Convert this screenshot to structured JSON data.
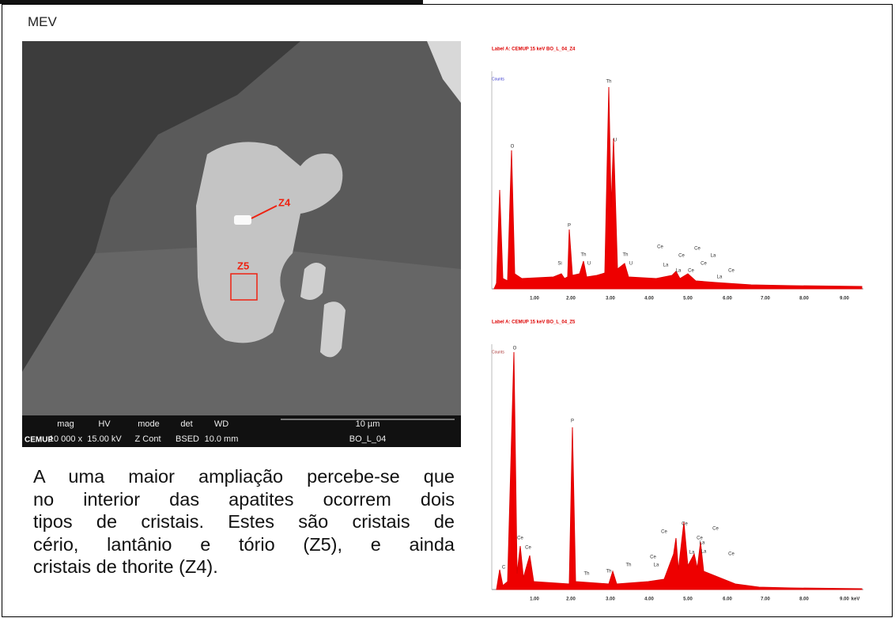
{
  "header": {
    "title": "MEV"
  },
  "sem_image": {
    "labels": [
      "Z4",
      "Z5"
    ],
    "info_bar": {
      "logo": "CEMUP",
      "headers": [
        "mag",
        "HV",
        "mode",
        "det",
        "WD",
        "10 µm"
      ],
      "values": [
        "10 000 x",
        "15.00 kV",
        "Z Cont",
        "BSED",
        "10.0 mm",
        "BO_L_04"
      ]
    }
  },
  "paragraph": {
    "lines": [
      "A uma maior ampliação percebe-se que",
      "no interior das apatites ocorrem dois",
      "tipos de cristais. Estes são cristais de",
      "cério, lantânio e tório (Z5), e ainda",
      "cristais de thorite (Z4)."
    ]
  },
  "spectra": [
    {
      "title": "Label A: CEMUP   15 keV   BO_L_04_Z4",
      "y_label": "Counts",
      "peak_labels": [
        "O",
        "P",
        "Si",
        "Th",
        "U",
        "Th",
        "U",
        "Th",
        "U",
        "Ce",
        "Ce",
        "Ce",
        "La",
        "La",
        "La",
        "Ce",
        "Ce",
        "La",
        "Ce"
      ],
      "x_ticks": [
        "1.00",
        "2.00",
        "3.00",
        "4.00",
        "5.00",
        "6.00",
        "7.00",
        "8.00",
        "9.00"
      ]
    },
    {
      "title": "Label A: CEMUP   15 keV   BO_L_04_Z5",
      "y_label": "Counts",
      "peak_labels": [
        "O",
        "P",
        "C",
        "Ce",
        "Ce",
        "Th",
        "Th",
        "Th",
        "Ce",
        "La",
        "Ce",
        "Ce",
        "La",
        "La",
        "Ce",
        "Ce",
        "La",
        "Ce"
      ],
      "x_ticks": [
        "1.00",
        "2.00",
        "3.00",
        "4.00",
        "5.00",
        "6.00",
        "7.00",
        "8.00",
        "9.00",
        "keV"
      ]
    }
  ]
}
